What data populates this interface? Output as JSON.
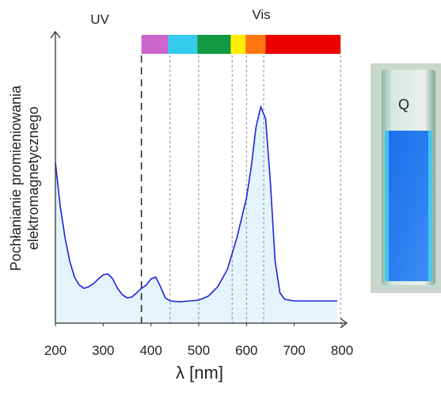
{
  "chart_data": {
    "type": "line",
    "ylabel": [
      "Pochłanianie promieniowania",
      "elektromagnetycznego"
    ],
    "xlabel": "λ [nm]",
    "annotations": [
      "UV",
      "Vis"
    ],
    "x": [
      200,
      210,
      220,
      230,
      240,
      250,
      260,
      270,
      280,
      290,
      300,
      310,
      320,
      330,
      340,
      350,
      360,
      370,
      380,
      390,
      400,
      410,
      420,
      430,
      440,
      460,
      480,
      500,
      520,
      540,
      560,
      580,
      600,
      610,
      620,
      630,
      640,
      650,
      660,
      670,
      680,
      700,
      750,
      790
    ],
    "values": [
      0.559,
      0.408,
      0.298,
      0.215,
      0.16,
      0.132,
      0.121,
      0.127,
      0.138,
      0.154,
      0.168,
      0.171,
      0.154,
      0.121,
      0.099,
      0.088,
      0.091,
      0.105,
      0.121,
      0.132,
      0.154,
      0.16,
      0.127,
      0.088,
      0.077,
      0.074,
      0.077,
      0.08,
      0.094,
      0.127,
      0.187,
      0.298,
      0.435,
      0.545,
      0.683,
      0.752,
      0.711,
      0.49,
      0.215,
      0.105,
      0.083,
      0.077,
      0.077,
      0.077
    ],
    "color": "#2222dd",
    "fill_color": "#e3f4fb",
    "xlim": [
      200,
      800
    ],
    "xticks": [
      200,
      300,
      400,
      500,
      600,
      700,
      800
    ],
    "ylim": [
      0,
      1
    ],
    "uv_vis_boundary": 380,
    "band_edges": [
      440,
      500,
      570,
      600,
      636,
      797
    ],
    "bands": [
      {
        "from": 380,
        "to": 436,
        "color": "#cc66cc"
      },
      {
        "from": 436,
        "to": 497,
        "color": "#33ccee"
      },
      {
        "from": 497,
        "to": 567,
        "color": "#119944"
      },
      {
        "from": 567,
        "to": 598,
        "color": "#ffee00"
      },
      {
        "from": 598,
        "to": 640,
        "color": "#ff7711"
      },
      {
        "from": 640,
        "to": 797,
        "color": "#ee0000"
      }
    ]
  }
}
